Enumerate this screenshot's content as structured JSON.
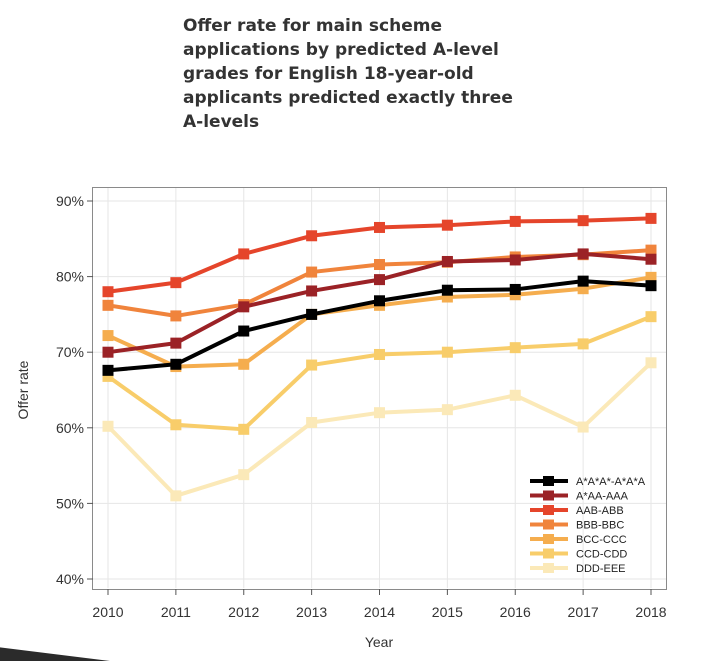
{
  "page": {
    "title": "Offer rate for main scheme applications by predicted A-level grades for English 18-year-old applicants predicted exactly three A-levels"
  },
  "chart_data": {
    "type": "line",
    "title": "Offer rate for main scheme applications by predicted A-level grades for English 18-year-old applicants predicted exactly three A-levels",
    "xlabel": "Year",
    "ylabel": "Offer rate",
    "categories": [
      "2010",
      "2011",
      "2012",
      "2013",
      "2014",
      "2015",
      "2016",
      "2017",
      "2018"
    ],
    "ylim": [
      40,
      90
    ],
    "yticks": [
      "40%",
      "50%",
      "60%",
      "70%",
      "80%",
      "90%"
    ],
    "grid": true,
    "legend_position": "bottom-right",
    "series": [
      {
        "name": "A*A*A*-A*A*A",
        "color": "#000000",
        "values": [
          67.6,
          68.4,
          72.8,
          75.0,
          76.8,
          78.2,
          78.3,
          79.4,
          78.8
        ]
      },
      {
        "name": "A*AA-AAA",
        "color": "#9b2226",
        "values": [
          70.0,
          71.2,
          76.0,
          78.1,
          79.6,
          82.0,
          82.2,
          83.0,
          82.3
        ]
      },
      {
        "name": "AAB-ABB",
        "color": "#e5452b",
        "values": [
          78.0,
          79.2,
          83.0,
          85.4,
          86.5,
          86.8,
          87.3,
          87.4,
          87.7
        ]
      },
      {
        "name": "BBB-BBC",
        "color": "#f0843c",
        "values": [
          76.2,
          74.8,
          76.3,
          80.6,
          81.6,
          81.9,
          82.6,
          82.9,
          83.5
        ]
      },
      {
        "name": "BCC-CCC",
        "color": "#f5ad4e",
        "values": [
          72.2,
          68.1,
          68.4,
          75.0,
          76.2,
          77.3,
          77.6,
          78.4,
          79.9
        ]
      },
      {
        "name": "CCD-CDD",
        "color": "#f8cd6a",
        "values": [
          66.8,
          60.4,
          59.8,
          68.3,
          69.7,
          70.0,
          70.6,
          71.1,
          74.7
        ]
      },
      {
        "name": "DDD-EEE",
        "color": "#fbe9b8",
        "values": [
          60.2,
          51.0,
          53.8,
          60.7,
          62.0,
          62.4,
          64.3,
          60.1,
          68.6
        ]
      }
    ]
  }
}
